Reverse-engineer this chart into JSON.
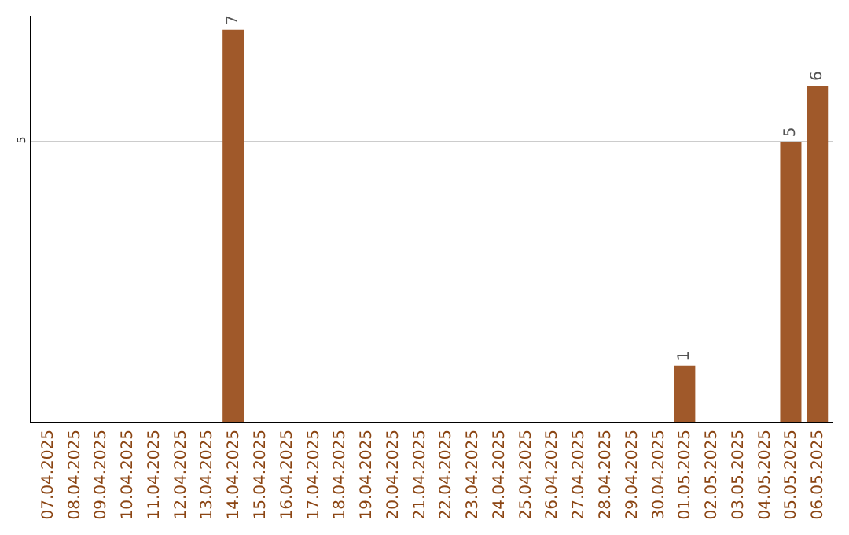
{
  "chart_data": {
    "type": "bar",
    "categories": [
      "07.04.2025",
      "08.04.2025",
      "09.04.2025",
      "10.04.2025",
      "11.04.2025",
      "12.04.2025",
      "13.04.2025",
      "14.04.2025",
      "15.04.2025",
      "16.04.2025",
      "17.04.2025",
      "18.04.2025",
      "19.04.2025",
      "20.04.2025",
      "21.04.2025",
      "22.04.2025",
      "23.04.2025",
      "24.04.2025",
      "25.04.2025",
      "26.04.2025",
      "27.04.2025",
      "28.04.2025",
      "29.04.2025",
      "30.04.2025",
      "01.05.2025",
      "02.05.2025",
      "03.05.2025",
      "04.05.2025",
      "05.05.2025",
      "06.05.2025"
    ],
    "values": [
      0,
      0,
      0,
      0,
      0,
      0,
      0,
      7,
      0,
      0,
      0,
      0,
      0,
      0,
      0,
      0,
      0,
      0,
      0,
      0,
      0,
      0,
      0,
      0,
      1,
      0,
      0,
      0,
      5,
      6
    ],
    "value_labels": [
      null,
      null,
      null,
      null,
      null,
      null,
      null,
      "7",
      null,
      null,
      null,
      null,
      null,
      null,
      null,
      null,
      null,
      null,
      null,
      null,
      null,
      null,
      null,
      null,
      "1",
      null,
      null,
      null,
      "5",
      "6"
    ],
    "color": "#a0592a",
    "ylim": [
      0,
      7.25
    ],
    "yticks": [
      5
    ],
    "grid": "y",
    "legend": false
  }
}
